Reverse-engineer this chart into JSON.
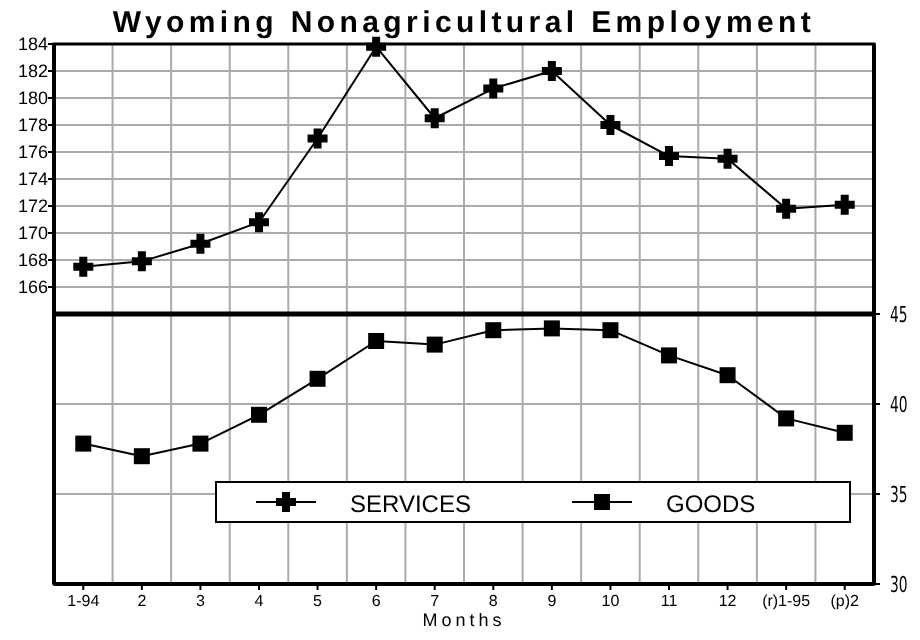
{
  "chart_data": {
    "type": "line",
    "title": "Wyoming Nonagricultural Employment",
    "xlabel": "Months",
    "categories": [
      "1-94",
      "2",
      "3",
      "4",
      "5",
      "6",
      "7",
      "8",
      "9",
      "10",
      "11",
      "12",
      "(r)1-95",
      "(p)2"
    ],
    "series": [
      {
        "name": "SERVICES",
        "color": "#000000",
        "marker": "cross",
        "values": [
          167.5,
          167.9,
          169.2,
          170.8,
          177,
          183.8,
          178.5,
          180.7,
          182,
          178,
          175.7,
          175.5,
          171.8,
          172.1
        ]
      },
      {
        "name": "GOODS",
        "color": "#000000",
        "marker": "square",
        "axis": "y2",
        "values": [
          37.8,
          37.1,
          37.8,
          39.4,
          41.4,
          43.5,
          43.3,
          44.1,
          44.2,
          44.1,
          42.7,
          41.6,
          39.2,
          38.4
        ]
      }
    ],
    "ylim": [
      144,
      184
    ],
    "yticks": [
      166,
      168,
      170,
      172,
      174,
      176,
      178,
      180,
      182,
      184
    ],
    "y2lim": [
      30,
      60
    ],
    "y2ticks": [
      30,
      35,
      40,
      45
    ],
    "ref_lines": [
      {
        "axis": "y2",
        "value": 45,
        "color": "#000000"
      }
    ],
    "grid": true,
    "legend": "bottom"
  }
}
